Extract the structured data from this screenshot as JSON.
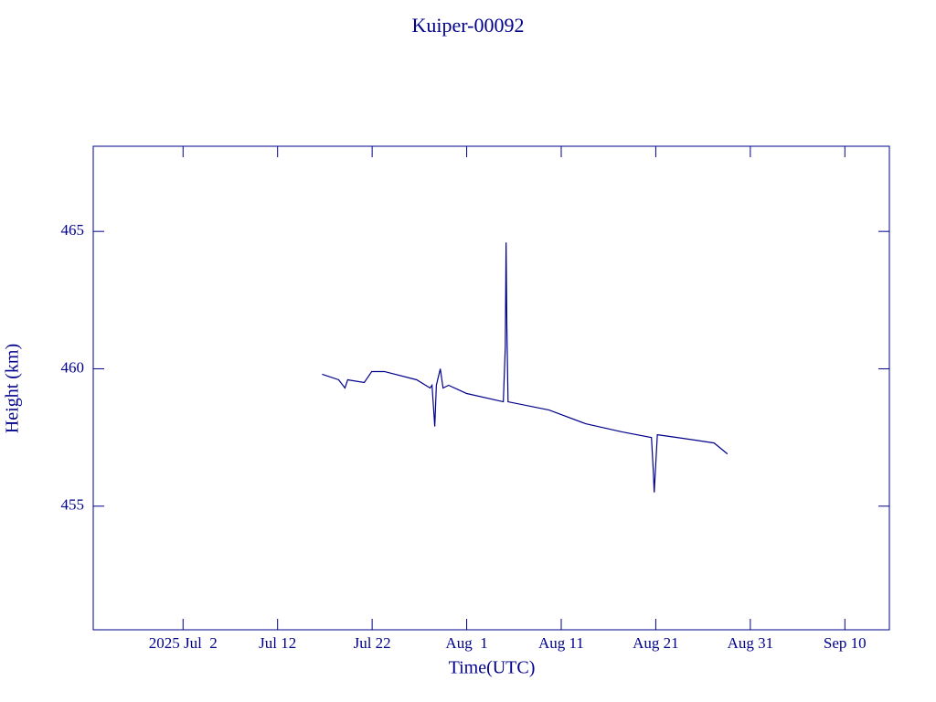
{
  "chart_data": {
    "type": "line",
    "title": "Kuiper-00092",
    "xlabel": "Time(UTC)",
    "ylabel": "Height (km)",
    "color": "#00008b",
    "xlim": [
      "2025-06-22T12:00",
      "2025-09-14T17:00"
    ],
    "xticks": [
      {
        "value": "2025-07-02T00:00",
        "label": "2025 Jul  2"
      },
      {
        "value": "2025-07-12T00:00",
        "label": "Jul 12"
      },
      {
        "value": "2025-07-22T00:00",
        "label": "Jul 22"
      },
      {
        "value": "2025-08-01T00:00",
        "label": "Aug  1"
      },
      {
        "value": "2025-08-11T00:00",
        "label": "Aug 11"
      },
      {
        "value": "2025-08-21T00:00",
        "label": "Aug 21"
      },
      {
        "value": "2025-08-31T00:00",
        "label": "Aug 31"
      },
      {
        "value": "2025-09-10T00:00",
        "label": "Sep 10"
      }
    ],
    "ylim": [
      450.5,
      468.1
    ],
    "yticks": [
      455,
      460,
      465
    ],
    "series": [
      {
        "name": "Kuiper-00092",
        "x": [
          "2025-07-16T17:00",
          "2025-07-18T11:00",
          "2025-07-19T03:00",
          "2025-07-19T10:00",
          "2025-07-21T04:00",
          "2025-07-21T23:00",
          "2025-07-23T07:00",
          "2025-07-26T17:00",
          "2025-07-28T03:00",
          "2025-07-28T08:00",
          "2025-07-28T15:00",
          "2025-07-28T19:00",
          "2025-07-29T05:00",
          "2025-07-29T12:00",
          "2025-07-30T02:00",
          "2025-08-01T00:00",
          "2025-08-04T21:00",
          "2025-08-05T02:00",
          "2025-08-05T04:00",
          "2025-08-05T06:00",
          "2025-08-05T09:00",
          "2025-08-09T17:00",
          "2025-08-13T14:00",
          "2025-08-17T11:00",
          "2025-08-20T13:00",
          "2025-08-20T18:00",
          "2025-08-20T20:00",
          "2025-08-21T04:00",
          "2025-08-23T06:00",
          "2025-08-27T04:00",
          "2025-08-28T14:00"
        ],
        "values": [
          459.8,
          459.6,
          459.3,
          459.6,
          459.5,
          459.9,
          459.9,
          459.6,
          459.3,
          459.4,
          457.9,
          459.4,
          460.0,
          459.3,
          459.4,
          459.1,
          458.8,
          460.8,
          464.6,
          461.5,
          458.8,
          458.5,
          458.0,
          457.7,
          457.5,
          456.2,
          455.5,
          457.6,
          457.5,
          457.3,
          456.9
        ]
      }
    ]
  }
}
